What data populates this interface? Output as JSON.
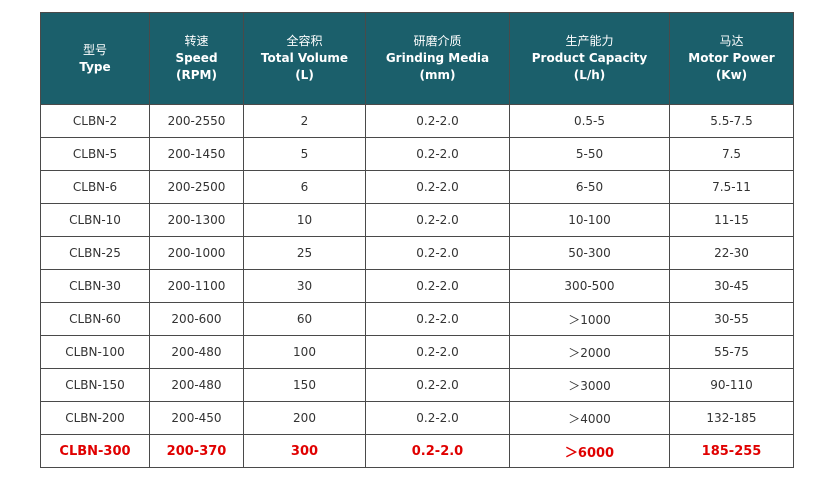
{
  "headers": [
    {
      "cn": "型号",
      "en": [
        "Type"
      ]
    },
    {
      "cn": "转速",
      "en": [
        "Speed",
        "(RPM)"
      ]
    },
    {
      "cn": "全容积",
      "en": [
        "Total Volume",
        "(L)"
      ]
    },
    {
      "cn": "研磨介质",
      "en": [
        "Grinding Media",
        "(mm)"
      ]
    },
    {
      "cn": "生产能力",
      "en": [
        "Product Capacity",
        "(L/h)"
      ]
    },
    {
      "cn": "马达",
      "en": [
        "Motor Power",
        "(Kw)"
      ]
    }
  ],
  "rows": [
    [
      "CLBN-2",
      "200-2550",
      "2",
      "0.2-2.0",
      "0.5-5",
      "5.5-7.5"
    ],
    [
      "CLBN-5",
      "200-1450",
      "5",
      "0.2-2.0",
      "5-50",
      "7.5"
    ],
    [
      "CLBN-6",
      "200-2500",
      "6",
      "0.2-2.0",
      "6-50",
      "7.5-11"
    ],
    [
      "CLBN-10",
      "200-1300",
      "10",
      "0.2-2.0",
      "10-100",
      "11-15"
    ],
    [
      "CLBN-25",
      "200-1000",
      "25",
      "0.2-2.0",
      "50-300",
      "22-30"
    ],
    [
      "CLBN-30",
      "200-1100",
      "30",
      "0.2-2.0",
      "300-500",
      "30-45"
    ],
    [
      "CLBN-60",
      "200-600",
      "60",
      "0.2-2.0",
      "＞1000",
      "30-55"
    ],
    [
      "CLBN-100",
      "200-480",
      "100",
      "0.2-2.0",
      "＞2000",
      "55-75"
    ],
    [
      "CLBN-150",
      "200-480",
      "150",
      "0.2-2.0",
      "＞3000",
      "90-110"
    ],
    [
      "CLBN-200",
      "200-450",
      "200",
      "0.2-2.0",
      "＞4000",
      "132-185"
    ],
    [
      "CLBN-300",
      "200-370",
      "300",
      "0.2-2.0",
      "＞6000",
      "185-255"
    ]
  ],
  "highlight_row": 10,
  "colors": {
    "header_bg": "#1b5f6b",
    "highlight_text": "#e00000",
    "border": "#4a4a4a"
  }
}
